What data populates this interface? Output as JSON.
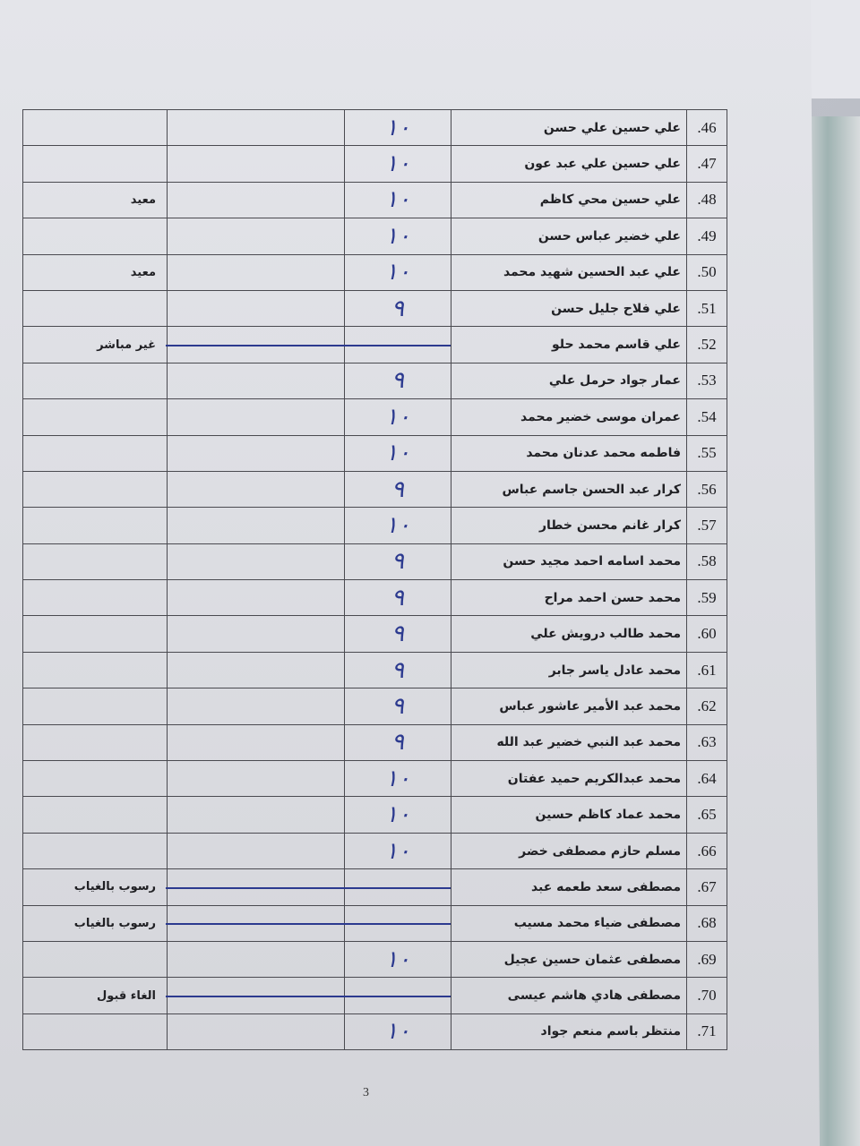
{
  "page_number": "3",
  "ink_color": "#2c3a8f",
  "rows": [
    {
      "no": "46.",
      "name": "علي حسين علي حسن",
      "grade": "١٠",
      "remark": ""
    },
    {
      "no": "47.",
      "name": "علي حسين علي عبد عون",
      "grade": "١٠",
      "remark": ""
    },
    {
      "no": "48.",
      "name": "علي حسين محي كاظم",
      "grade": "١٠",
      "remark": "معيد"
    },
    {
      "no": "49.",
      "name": "علي خضير عباس حسن",
      "grade": "١٠",
      "remark": ""
    },
    {
      "no": "50.",
      "name": "علي عبد الحسين شهيد محمد",
      "grade": "١٠",
      "remark": "معيد"
    },
    {
      "no": "51.",
      "name": "علي فلاح جليل حسن",
      "grade": "٩",
      "remark": ""
    },
    {
      "no": "52.",
      "name": "علي قاسم محمد حلو",
      "grade": "",
      "remark": "غير مباشر",
      "struck": true
    },
    {
      "no": "53.",
      "name": "عمار جواد حرمل علي",
      "grade": "٩",
      "remark": ""
    },
    {
      "no": "54.",
      "name": "عمران موسى خضير محمد",
      "grade": "١٠",
      "remark": ""
    },
    {
      "no": "55.",
      "name": "فاطمه محمد عدنان محمد",
      "grade": "١٠",
      "remark": ""
    },
    {
      "no": "56.",
      "name": "كرار عبد الحسن جاسم عباس",
      "grade": "٩",
      "remark": ""
    },
    {
      "no": "57.",
      "name": "كرار غانم محسن خطار",
      "grade": "١٠",
      "remark": ""
    },
    {
      "no": "58.",
      "name": "محمد اسامه احمد مجيد حسن",
      "grade": "٩",
      "remark": ""
    },
    {
      "no": "59.",
      "name": "محمد حسن احمد مراح",
      "grade": "٩",
      "remark": ""
    },
    {
      "no": "60.",
      "name": "محمد طالب درويش علي",
      "grade": "٩",
      "remark": ""
    },
    {
      "no": "61.",
      "name": "محمد عادل ياسر جابر",
      "grade": "٩",
      "remark": ""
    },
    {
      "no": "62.",
      "name": "محمد عبد الأمير عاشور عباس",
      "grade": "٩",
      "remark": ""
    },
    {
      "no": "63.",
      "name": "محمد عبد النبي خضير عبد الله",
      "grade": "٩",
      "remark": ""
    },
    {
      "no": "64.",
      "name": "محمد عبدالكريم حميد عفتان",
      "grade": "١٠",
      "remark": ""
    },
    {
      "no": "65.",
      "name": "محمد عماد كاظم حسين",
      "grade": "١٠",
      "remark": ""
    },
    {
      "no": "66.",
      "name": "مسلم حازم مصطفى خضر",
      "grade": "١٠",
      "remark": ""
    },
    {
      "no": "67.",
      "name": "مصطفى سعد طعمه عبد",
      "grade": "",
      "remark": "رسوب بالغياب",
      "struck": true
    },
    {
      "no": "68.",
      "name": "مصطفى ضياء محمد مسيب",
      "grade": "",
      "remark": "رسوب بالغياب",
      "struck": true
    },
    {
      "no": "69.",
      "name": "مصطفى عثمان حسين عجيل",
      "grade": "١٠",
      "remark": ""
    },
    {
      "no": "70.",
      "name": "مصطفى هادي هاشم عيسى",
      "grade": "",
      "remark": "الغاء قبول",
      "struck": true
    },
    {
      "no": "71.",
      "name": "منتظر باسم منعم جواد",
      "grade": "١٠",
      "remark": ""
    }
  ]
}
